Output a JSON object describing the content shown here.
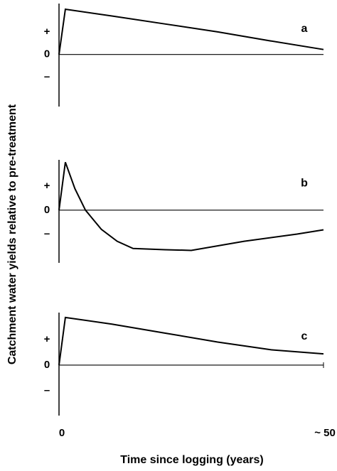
{
  "chart_data": [
    {
      "type": "line",
      "label": "a",
      "x": [
        0,
        1.2,
        10,
        20,
        30,
        40,
        50
      ],
      "values": [
        0,
        2.0,
        1.7,
        1.35,
        1.0,
        0.6,
        0.22
      ],
      "xlim": [
        0,
        50
      ],
      "ylim": [
        -2.3,
        2.25
      ],
      "yticks": [
        {
          "value": 1,
          "label": "+"
        },
        {
          "value": 0,
          "label": "0"
        },
        {
          "value": -1,
          "label": "–"
        }
      ],
      "color": "#000000"
    },
    {
      "type": "line",
      "label": "b",
      "ylabel": "Catchment water yields relative to pre-treatment",
      "x": [
        0,
        1.2,
        3,
        5,
        8,
        11,
        14,
        20,
        25,
        35,
        45,
        50
      ],
      "values": [
        0,
        2.0,
        0.9,
        0,
        -0.8,
        -1.3,
        -1.6,
        -1.65,
        -1.68,
        -1.3,
        -1.0,
        -0.82
      ],
      "xlim": [
        0,
        50
      ],
      "ylim": [
        -2.2,
        2.1
      ],
      "yticks": [
        {
          "value": 1,
          "label": "+"
        },
        {
          "value": 0,
          "label": "0"
        },
        {
          "value": -1,
          "label": "–"
        }
      ],
      "color": "#000000"
    },
    {
      "type": "line",
      "label": "c",
      "xlabel": "Time since logging (years)",
      "x": [
        0,
        1.2,
        10,
        20,
        30,
        40,
        50
      ],
      "values": [
        0,
        1.86,
        1.6,
        1.25,
        0.9,
        0.6,
        0.44
      ],
      "xlim": [
        0,
        50
      ],
      "ylim": [
        -1.97,
        2.05
      ],
      "xticks": [
        {
          "value": 0,
          "label": "0"
        },
        {
          "value": 50,
          "label": "~ 50"
        }
      ],
      "yticks": [
        {
          "value": 1,
          "label": "+"
        },
        {
          "value": 0,
          "label": "0"
        },
        {
          "value": -1,
          "label": "–"
        }
      ],
      "color": "#000000"
    }
  ]
}
